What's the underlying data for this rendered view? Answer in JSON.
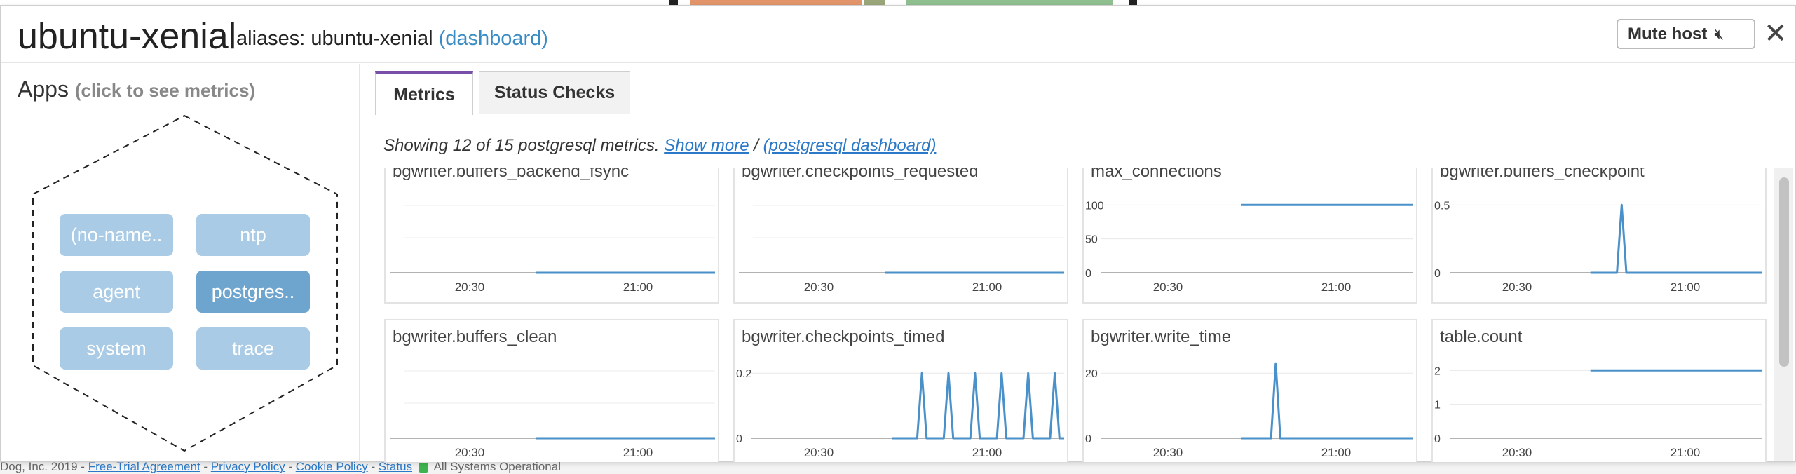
{
  "host": {
    "name": "ubuntu-xenial",
    "aliases_label": "aliases:",
    "alias": "ubuntu-xenial",
    "dashboard_link": "(dashboard)",
    "mute_label": "Mute host",
    "mute_icon": "speaker-muted-icon",
    "close_icon": "close-icon"
  },
  "apps": {
    "title": "Apps",
    "hint": "(click to see metrics)",
    "items": [
      {
        "label": "(no-name..",
        "active": false
      },
      {
        "label": "ntp",
        "active": false
      },
      {
        "label": "agent",
        "active": false
      },
      {
        "label": "postgres..",
        "active": true
      },
      {
        "label": "system",
        "active": false
      },
      {
        "label": "trace",
        "active": false
      }
    ]
  },
  "tabs": [
    {
      "label": "Metrics",
      "active": true
    },
    {
      "label": "Status Checks",
      "active": false
    }
  ],
  "metrics_info": {
    "text": "Showing 12 of 15 postgresql metrics.",
    "show_more": "Show more",
    "separator": "/",
    "dashboard": "(postgresql dashboard)"
  },
  "colors": {
    "line": "#4a90c9",
    "accent_tab": "#7a4fa8",
    "app_button": "#a9cbe5",
    "app_button_active": "#6ea5cf"
  },
  "background_footer": {
    "text_start": "Dog, Inc. 2019 -",
    "links": [
      "Free-Trial Agreement",
      "Privacy Policy",
      "Cookie Policy",
      "Status"
    ],
    "status_text": "All Systems Operational"
  },
  "chart_data": [
    {
      "type": "line",
      "title": "bgwriter.buffers_backend_fsync",
      "x_ticks": [
        "20:30",
        "21:00"
      ],
      "y_ticks": [],
      "ylim": [
        0,
        1
      ],
      "series": [
        {
          "x": [
            0.45,
            1.0
          ],
          "y": [
            0,
            0
          ]
        }
      ]
    },
    {
      "type": "line",
      "title": "bgwriter.checkpoints_requested",
      "x_ticks": [
        "20:30",
        "21:00"
      ],
      "y_ticks": [],
      "ylim": [
        0,
        1
      ],
      "series": [
        {
          "x": [
            0.45,
            1.0
          ],
          "y": [
            0,
            0
          ]
        }
      ]
    },
    {
      "type": "line",
      "title": "max_connections",
      "x_ticks": [
        "20:30",
        "21:00"
      ],
      "y_ticks": [
        0,
        50,
        100
      ],
      "ylim": [
        0,
        120
      ],
      "series": [
        {
          "x": [
            0.45,
            1.0
          ],
          "y": [
            100,
            100
          ]
        }
      ]
    },
    {
      "type": "line",
      "title": "bgwriter.buffers_checkpoint",
      "x_ticks": [
        "20:30",
        "21:00"
      ],
      "y_ticks": [
        0,
        0.5
      ],
      "ylim": [
        0,
        0.6
      ],
      "series": [
        {
          "x": [
            0.45,
            0.535,
            0.55,
            0.565,
            1.0
          ],
          "y": [
            0,
            0,
            0.5,
            0,
            0
          ]
        }
      ]
    },
    {
      "type": "line",
      "title": "bgwriter.buffers_clean",
      "x_ticks": [
        "20:30",
        "21:00"
      ],
      "y_ticks": [],
      "ylim": [
        0,
        1
      ],
      "series": [
        {
          "x": [
            0.45,
            1.0
          ],
          "y": [
            0,
            0
          ]
        }
      ]
    },
    {
      "type": "line",
      "title": "bgwriter.checkpoints_timed",
      "x_ticks": [
        "20:30",
        "21:00"
      ],
      "y_ticks": [
        0,
        0.2
      ],
      "ylim": [
        0,
        0.25
      ],
      "series": [
        {
          "x": [
            0.45,
            0.53,
            0.545,
            0.56,
            0.615,
            0.63,
            0.645,
            0.7,
            0.715,
            0.73,
            0.785,
            0.8,
            0.815,
            0.87,
            0.885,
            0.9,
            0.955,
            0.97,
            0.985,
            1.0
          ],
          "y": [
            0,
            0,
            0.2,
            0,
            0,
            0.2,
            0,
            0,
            0.2,
            0,
            0,
            0.2,
            0,
            0,
            0.2,
            0,
            0,
            0.2,
            0,
            0
          ]
        }
      ]
    },
    {
      "type": "line",
      "title": "bgwriter.write_time",
      "x_ticks": [
        "20:30",
        "21:00"
      ],
      "y_ticks": [
        0,
        20
      ],
      "ylim": [
        0,
        25
      ],
      "series": [
        {
          "x": [
            0.45,
            0.545,
            0.56,
            0.575,
            1.0
          ],
          "y": [
            0,
            0,
            23,
            0,
            0
          ]
        }
      ]
    },
    {
      "type": "line",
      "title": "table.count",
      "x_ticks": [
        "20:30",
        "21:00"
      ],
      "y_ticks": [
        0,
        1,
        2
      ],
      "ylim": [
        0,
        2.4
      ],
      "series": [
        {
          "x": [
            0.45,
            1.0
          ],
          "y": [
            2,
            2
          ]
        }
      ]
    }
  ]
}
